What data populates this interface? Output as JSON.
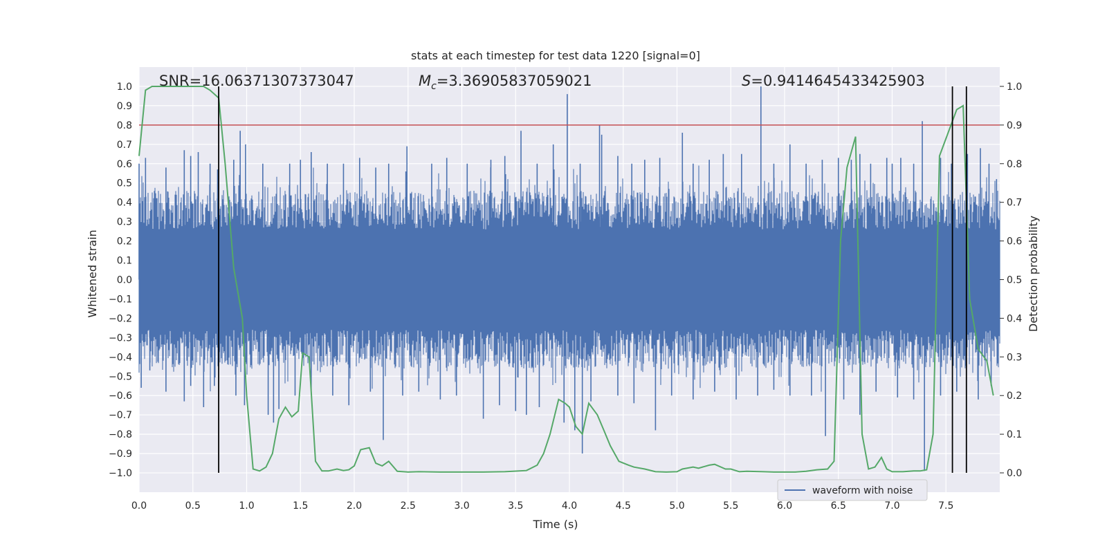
{
  "chart_data": {
    "type": "line",
    "title": "stats at each timestep for test data 1220 [signal=0]",
    "xlabel": "Time (s)",
    "ylabel": "Whitened strain",
    "y2label": "Detection probability",
    "xlim": [
      0.0,
      8.0
    ],
    "ylim": [
      -1.1,
      1.1
    ],
    "y2lim": [
      -0.05,
      1.05
    ],
    "x_ticks": [
      "0.0",
      "0.5",
      "1.0",
      "1.5",
      "2.0",
      "2.5",
      "3.0",
      "3.5",
      "4.0",
      "4.5",
      "5.0",
      "5.5",
      "6.0",
      "6.5",
      "7.0",
      "7.5"
    ],
    "y_ticks": [
      "1.0",
      "0.9",
      "0.8",
      "0.7",
      "0.6",
      "0.5",
      "0.4",
      "0.3",
      "0.2",
      "0.1",
      "0.0",
      "−0.1",
      "−0.2",
      "−0.3",
      "−0.4",
      "−0.5",
      "−0.6",
      "−0.7",
      "−0.8",
      "−0.9",
      "−1.0"
    ],
    "y2_ticks": [
      "1.0",
      "0.9",
      "0.8",
      "0.7",
      "0.6",
      "0.5",
      "0.4",
      "0.3",
      "0.2",
      "0.1",
      "0.0"
    ],
    "grid": true,
    "legend": {
      "placement": "lower-right",
      "entries": [
        "waveform with noise"
      ]
    },
    "annotations": {
      "snr": "SNR=16.06371307373047",
      "mc": "=3.36905837059021",
      "mc_symbol": "M",
      "mc_sub": "c",
      "s": "=0.9414645433425903",
      "s_symbol": "S"
    },
    "threshold": 0.8,
    "vlines": [
      0.74,
      7.56,
      7.69
    ],
    "colors": {
      "waveform": "#4c72b0",
      "probability": "#55a868",
      "threshold": "#c44e52",
      "vline": "#000000",
      "background": "#eaeaf2",
      "grid": "#ffffff"
    },
    "waveform_spikes": {
      "positive": [
        [
          0.0,
          0.6
        ],
        [
          0.06,
          0.63
        ],
        [
          0.25,
          0.58
        ],
        [
          0.42,
          0.67
        ],
        [
          0.48,
          0.64
        ],
        [
          0.55,
          0.66
        ],
        [
          0.66,
          0.6
        ],
        [
          0.73,
          0.57
        ],
        [
          0.88,
          0.62
        ],
        [
          0.94,
          0.77
        ],
        [
          0.99,
          0.7
        ],
        [
          1.15,
          0.6
        ],
        [
          1.4,
          0.6
        ],
        [
          1.5,
          0.62
        ],
        [
          1.6,
          0.66
        ],
        [
          1.75,
          0.6
        ],
        [
          1.9,
          0.6
        ],
        [
          2.05,
          0.63
        ],
        [
          2.2,
          0.58
        ],
        [
          2.32,
          0.6
        ],
        [
          2.48,
          0.56
        ],
        [
          2.49,
          0.69
        ],
        [
          2.72,
          0.6
        ],
        [
          2.86,
          0.63
        ],
        [
          3.05,
          0.6
        ],
        [
          3.27,
          0.62
        ],
        [
          3.4,
          0.64
        ],
        [
          3.55,
          0.77
        ],
        [
          3.7,
          0.6
        ],
        [
          3.85,
          0.7
        ],
        [
          3.98,
          0.96
        ],
        [
          4.1,
          0.6
        ],
        [
          4.28,
          0.8
        ],
        [
          4.3,
          0.75
        ],
        [
          4.45,
          0.64
        ],
        [
          4.58,
          0.6
        ],
        [
          4.7,
          0.62
        ],
        [
          4.84,
          0.63
        ],
        [
          5.05,
          0.76
        ],
        [
          5.15,
          0.6
        ],
        [
          5.3,
          0.62
        ],
        [
          5.43,
          0.65
        ],
        [
          5.6,
          0.65
        ],
        [
          5.78,
          1.0
        ],
        [
          5.9,
          0.6
        ],
        [
          6.05,
          0.7
        ],
        [
          6.2,
          0.6
        ],
        [
          6.35,
          0.62
        ],
        [
          6.5,
          0.63
        ],
        [
          6.62,
          0.62
        ],
        [
          6.7,
          0.65
        ],
        [
          6.8,
          0.6
        ],
        [
          6.95,
          0.63
        ],
        [
          7.0,
          0.6
        ],
        [
          7.08,
          0.63
        ],
        [
          7.2,
          0.6
        ],
        [
          7.28,
          0.82
        ],
        [
          7.45,
          0.63
        ],
        [
          7.55,
          0.6
        ],
        [
          7.7,
          0.65
        ],
        [
          7.82,
          0.68
        ],
        [
          7.9,
          0.6
        ],
        [
          7.97,
          0.52
        ]
      ],
      "negative": [
        [
          0.02,
          -0.56
        ],
        [
          0.1,
          -0.47
        ],
        [
          0.25,
          -0.58
        ],
        [
          0.42,
          -0.63
        ],
        [
          0.48,
          -0.55
        ],
        [
          0.6,
          -0.66
        ],
        [
          0.7,
          -0.55
        ],
        [
          0.9,
          -0.6
        ],
        [
          0.98,
          -0.65
        ],
        [
          1.2,
          -0.7
        ],
        [
          1.25,
          -0.74
        ],
        [
          1.3,
          -0.67
        ],
        [
          1.45,
          -0.6
        ],
        [
          1.6,
          -0.57
        ],
        [
          1.8,
          -0.6
        ],
        [
          1.95,
          -0.65
        ],
        [
          2.15,
          -0.58
        ],
        [
          2.27,
          -0.83
        ],
        [
          2.45,
          -0.6
        ],
        [
          2.6,
          -0.58
        ],
        [
          2.8,
          -0.62
        ],
        [
          2.95,
          -0.6
        ],
        [
          3.2,
          -0.72
        ],
        [
          3.35,
          -0.65
        ],
        [
          3.5,
          -0.68
        ],
        [
          3.6,
          -0.7
        ],
        [
          3.72,
          -0.66
        ],
        [
          3.95,
          -0.74
        ],
        [
          4.05,
          -0.78
        ],
        [
          4.12,
          -0.9
        ],
        [
          4.2,
          -0.63
        ],
        [
          4.45,
          -0.6
        ],
        [
          4.6,
          -0.64
        ],
        [
          4.8,
          -0.78
        ],
        [
          4.95,
          -0.6
        ],
        [
          5.15,
          -0.62
        ],
        [
          5.35,
          -0.58
        ],
        [
          5.55,
          -0.62
        ],
        [
          5.75,
          -0.6
        ],
        [
          5.9,
          -0.57
        ],
        [
          6.05,
          -0.6
        ],
        [
          6.25,
          -0.6
        ],
        [
          6.38,
          -0.81
        ],
        [
          6.55,
          -0.62
        ],
        [
          6.7,
          -0.7
        ],
        [
          6.85,
          -0.58
        ],
        [
          7.05,
          -0.61
        ],
        [
          7.2,
          -0.62
        ],
        [
          7.3,
          -0.99
        ],
        [
          7.45,
          -0.6
        ],
        [
          7.6,
          -0.58
        ],
        [
          7.8,
          -0.62
        ],
        [
          7.92,
          -0.55
        ]
      ]
    },
    "probability": {
      "x": [
        0.0,
        0.06,
        0.12,
        0.2,
        0.3,
        0.4,
        0.5,
        0.6,
        0.66,
        0.74,
        0.8,
        0.88,
        0.96,
        1.0,
        1.06,
        1.12,
        1.18,
        1.24,
        1.3,
        1.36,
        1.42,
        1.48,
        1.52,
        1.58,
        1.64,
        1.7,
        1.76,
        1.84,
        1.9,
        1.95,
        2.0,
        2.06,
        2.14,
        2.2,
        2.26,
        2.32,
        2.4,
        2.5,
        2.6,
        2.8,
        3.0,
        3.2,
        3.4,
        3.6,
        3.7,
        3.76,
        3.82,
        3.9,
        3.96,
        4.0,
        4.06,
        4.12,
        4.18,
        4.26,
        4.32,
        4.38,
        4.46,
        4.55,
        4.6,
        4.7,
        4.8,
        4.9,
        5.0,
        5.05,
        5.15,
        5.2,
        5.3,
        5.35,
        5.45,
        5.5,
        5.58,
        5.65,
        5.8,
        5.9,
        6.0,
        6.1,
        6.2,
        6.3,
        6.4,
        6.46,
        6.52,
        6.58,
        6.66,
        6.72,
        6.78,
        6.84,
        6.9,
        6.95,
        7.0,
        7.1,
        7.2,
        7.26,
        7.32,
        7.38,
        7.44,
        7.52,
        7.6,
        7.66,
        7.72,
        7.8,
        7.88,
        7.94
      ],
      "y": [
        0.82,
        0.99,
        1.0,
        1.0,
        1.0,
        1.0,
        1.0,
        1.0,
        0.99,
        0.97,
        0.8,
        0.53,
        0.4,
        0.2,
        0.01,
        0.005,
        0.015,
        0.05,
        0.14,
        0.17,
        0.145,
        0.16,
        0.31,
        0.3,
        0.03,
        0.005,
        0.005,
        0.01,
        0.006,
        0.008,
        0.018,
        0.06,
        0.065,
        0.025,
        0.018,
        0.03,
        0.004,
        0.002,
        0.003,
        0.002,
        0.002,
        0.002,
        0.003,
        0.006,
        0.02,
        0.05,
        0.1,
        0.19,
        0.18,
        0.17,
        0.12,
        0.1,
        0.18,
        0.15,
        0.11,
        0.07,
        0.03,
        0.02,
        0.015,
        0.01,
        0.003,
        0.002,
        0.003,
        0.01,
        0.015,
        0.012,
        0.02,
        0.022,
        0.01,
        0.01,
        0.003,
        0.004,
        0.003,
        0.002,
        0.002,
        0.002,
        0.004,
        0.008,
        0.01,
        0.03,
        0.6,
        0.79,
        0.87,
        0.1,
        0.01,
        0.015,
        0.04,
        0.01,
        0.003,
        0.003,
        0.005,
        0.005,
        0.008,
        0.1,
        0.82,
        0.88,
        0.94,
        0.95,
        0.45,
        0.32,
        0.29,
        0.2
      ]
    }
  }
}
